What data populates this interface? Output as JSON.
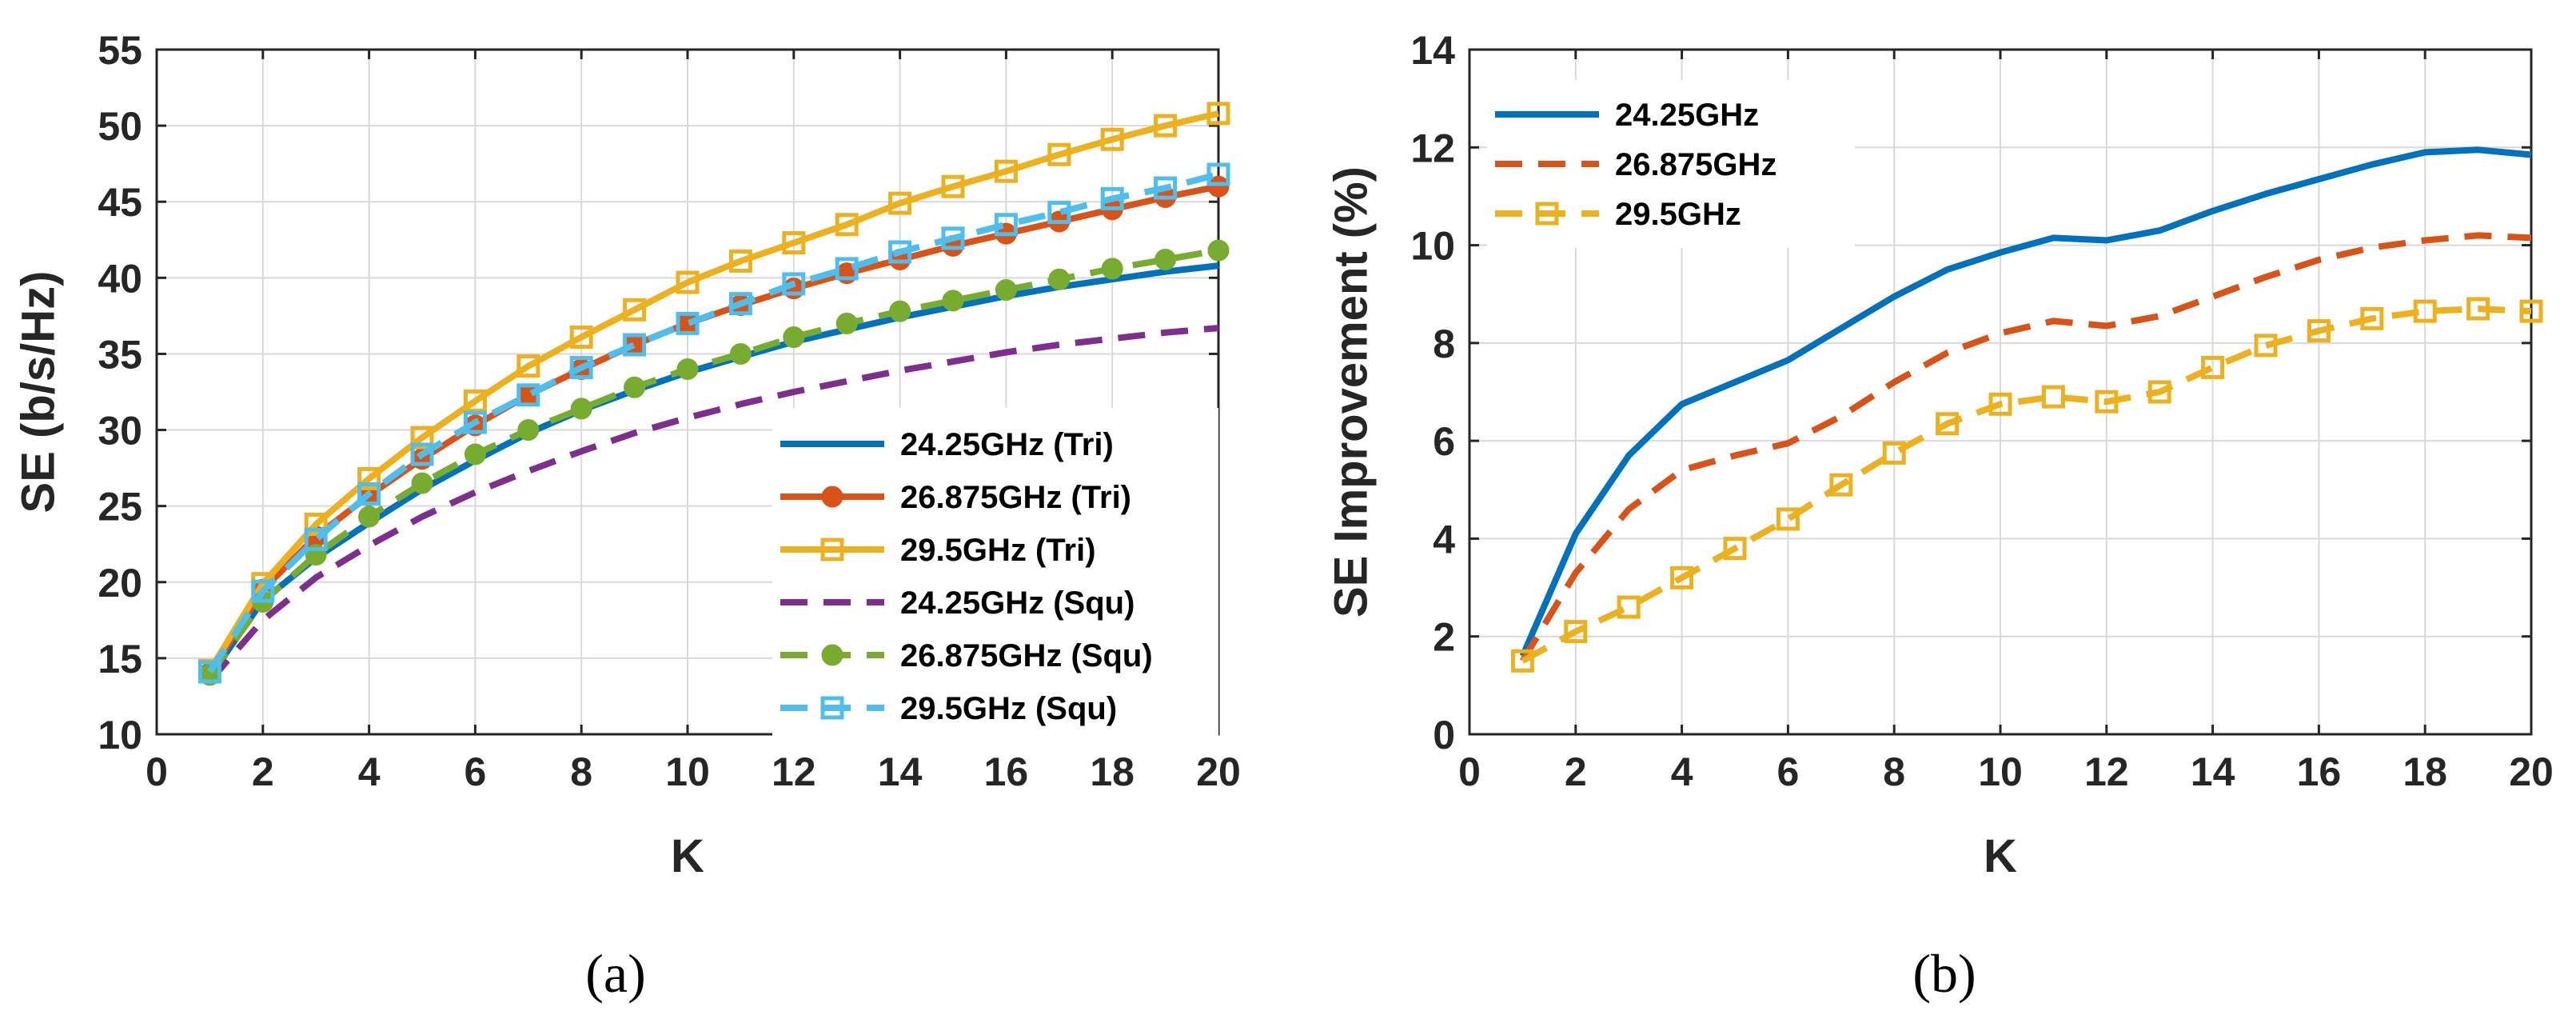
{
  "chart_data": [
    {
      "id": "a",
      "type": "line",
      "caption": "(a)",
      "xlabel": "K",
      "ylabel": "SE (b/s/Hz)",
      "xlim": [
        0,
        20
      ],
      "ylim": [
        10,
        55
      ],
      "xticks": [
        0,
        2,
        4,
        6,
        8,
        10,
        12,
        14,
        16,
        18,
        20
      ],
      "yticks": [
        10,
        15,
        20,
        25,
        30,
        35,
        40,
        45,
        50,
        55
      ],
      "grid": true,
      "legend_position": "bottom-right",
      "x": [
        1,
        2,
        3,
        4,
        5,
        6,
        7,
        8,
        9,
        10,
        11,
        12,
        13,
        14,
        15,
        16,
        17,
        18,
        19,
        20
      ],
      "series": [
        {
          "name": "24.25GHz (Tri)",
          "color": "#0072BD",
          "dash": "solid",
          "marker": "none",
          "values": [
            13.8,
            18.8,
            21.6,
            23.9,
            26.1,
            28.0,
            29.8,
            31.3,
            32.6,
            33.8,
            34.8,
            35.8,
            36.6,
            37.4,
            38.1,
            38.8,
            39.4,
            39.9,
            40.4,
            40.8
          ]
        },
        {
          "name": "26.875GHz (Tri)",
          "color": "#D95319",
          "dash": "solid",
          "marker": "circle",
          "values": [
            14.0,
            19.5,
            23.0,
            25.7,
            28.1,
            30.3,
            32.3,
            34.0,
            35.6,
            37.0,
            38.2,
            39.3,
            40.3,
            41.2,
            42.1,
            42.9,
            43.7,
            44.5,
            45.3,
            46.0
          ]
        },
        {
          "name": "29.5GHz (Tri)",
          "color": "#EDB120",
          "dash": "solid",
          "marker": "square",
          "values": [
            14.2,
            19.9,
            23.8,
            26.8,
            29.5,
            31.9,
            34.2,
            36.1,
            37.9,
            39.7,
            41.1,
            42.3,
            43.5,
            44.9,
            46.0,
            47.0,
            48.1,
            49.1,
            50.0,
            50.8
          ]
        },
        {
          "name": "24.25GHz (Squ)",
          "color": "#7E2F8E",
          "dash": "dashed",
          "marker": "none",
          "values": [
            13.5,
            17.5,
            20.3,
            22.4,
            24.3,
            25.9,
            27.3,
            28.6,
            29.8,
            30.8,
            31.7,
            32.5,
            33.2,
            33.9,
            34.5,
            35.1,
            35.6,
            36.0,
            36.4,
            36.7
          ]
        },
        {
          "name": "26.875GHz (Squ)",
          "color": "#77AC30",
          "dash": "dashed",
          "marker": "circle",
          "values": [
            13.9,
            18.7,
            21.8,
            24.3,
            26.5,
            28.4,
            30.0,
            31.4,
            32.8,
            34.0,
            35.0,
            36.1,
            37.0,
            37.8,
            38.5,
            39.2,
            39.9,
            40.6,
            41.2,
            41.8
          ]
        },
        {
          "name": "29.5GHz (Squ)",
          "color": "#4DBEEE",
          "dash": "dashed",
          "marker": "square",
          "values": [
            14.1,
            19.4,
            22.8,
            25.8,
            28.4,
            30.5,
            32.3,
            34.1,
            35.6,
            37.0,
            38.3,
            39.6,
            40.6,
            41.7,
            42.6,
            43.5,
            44.3,
            45.2,
            45.9,
            46.8
          ]
        }
      ]
    },
    {
      "id": "b",
      "type": "line",
      "caption": "(b)",
      "xlabel": "K",
      "ylabel": "SE Improvement (%)",
      "xlim": [
        0,
        20
      ],
      "ylim": [
        0,
        14
      ],
      "xticks": [
        0,
        2,
        4,
        6,
        8,
        10,
        12,
        14,
        16,
        18,
        20
      ],
      "yticks": [
        0,
        2,
        4,
        6,
        8,
        10,
        12,
        14
      ],
      "grid": true,
      "legend_position": "top-left",
      "x": [
        1,
        2,
        3,
        4,
        5,
        6,
        7,
        8,
        9,
        10,
        11,
        12,
        13,
        14,
        15,
        16,
        17,
        18,
        19,
        20
      ],
      "series": [
        {
          "name": "24.25GHz",
          "color": "#0072BD",
          "dash": "solid",
          "marker": "none",
          "values": [
            1.6,
            4.1,
            5.7,
            6.75,
            7.2,
            7.65,
            8.3,
            8.95,
            9.5,
            9.85,
            10.15,
            10.1,
            10.3,
            10.7,
            11.05,
            11.35,
            11.65,
            11.9,
            11.95,
            11.85
          ]
        },
        {
          "name": "26.875GHz",
          "color": "#D95319",
          "dash": "dashed",
          "marker": "none",
          "values": [
            1.5,
            3.3,
            4.6,
            5.4,
            5.7,
            5.95,
            6.5,
            7.2,
            7.8,
            8.2,
            8.45,
            8.35,
            8.55,
            8.95,
            9.35,
            9.7,
            9.95,
            10.1,
            10.2,
            10.15
          ]
        },
        {
          "name": "29.5GHz",
          "color": "#EDB120",
          "dash": "dashed",
          "marker": "square",
          "values": [
            1.5,
            2.1,
            2.6,
            3.2,
            3.8,
            4.4,
            5.1,
            5.75,
            6.35,
            6.75,
            6.9,
            6.8,
            7.0,
            7.5,
            7.95,
            8.25,
            8.5,
            8.65,
            8.7,
            8.65
          ]
        }
      ]
    }
  ]
}
